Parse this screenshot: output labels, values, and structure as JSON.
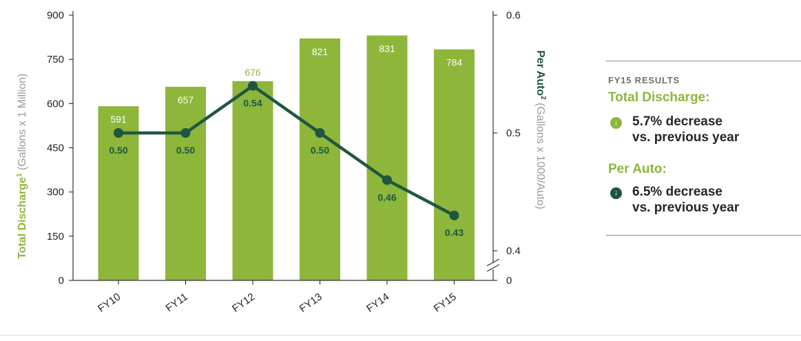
{
  "chart_data": {
    "type": "bar+line",
    "categories": [
      "FY10",
      "FY11",
      "FY12",
      "FY13",
      "FY14",
      "FY15"
    ],
    "series": [
      {
        "name": "Total Discharge",
        "type": "bar",
        "axis": "left",
        "values": [
          591,
          657,
          676,
          821,
          831,
          784
        ],
        "labels": [
          "591",
          "657",
          "676",
          "821",
          "831",
          "784"
        ]
      },
      {
        "name": "Per Auto",
        "type": "line",
        "axis": "right",
        "values": [
          0.5,
          0.5,
          0.54,
          0.5,
          0.46,
          0.43
        ],
        "labels": [
          "0.50",
          "0.50",
          "0.54",
          "0.50",
          "0.46",
          "0.43"
        ]
      }
    ],
    "left_axis": {
      "label_bold": "Total Discharge",
      "label_sup": "1",
      "label_rest": " (Gallons x 1 Million)",
      "ylim": [
        0,
        900
      ],
      "ticks": [
        0,
        150,
        300,
        450,
        600,
        750,
        900
      ]
    },
    "right_axis": {
      "label_bold": "Per Auto",
      "label_sup": "2",
      "label_rest": " (Gallons x 1000/Auto)",
      "ylim": [
        0.4,
        0.6
      ],
      "ticks": [
        "0.4",
        "0.5",
        "0.6"
      ],
      "break_label": "0",
      "broken": true
    },
    "grid": false
  },
  "results": {
    "heading": "FY15 RESULTS",
    "total_label": "Total Discharge:",
    "total_line1": "5.7% decrease",
    "total_line2": "vs. previous year",
    "auto_label": "Per Auto:",
    "auto_line1": "6.5% decrease",
    "auto_line2": "vs. previous year",
    "icon": "down-arrow-circle-icon"
  },
  "colors": {
    "bar": "#8db63a",
    "bar_label_inside": "#ffffff",
    "bar_label_outside": "#8db63a",
    "line": "#1f5641",
    "line_label": "#1f5641",
    "left_title": "#8db63a",
    "right_title": "#1f5641",
    "axis": "#333333",
    "tick_label": "#222222",
    "subtitle_gray": "#9a9a9a"
  }
}
